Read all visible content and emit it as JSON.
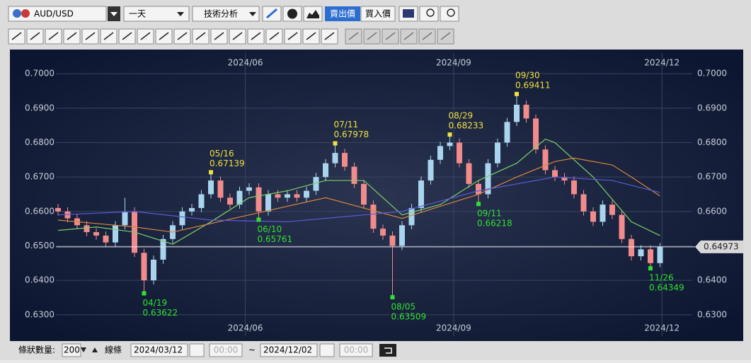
{
  "toolbar": {
    "symbol": "AUD/USD",
    "period": "一天",
    "analysis": "技術分析",
    "sell": "賣出價",
    "buy": "買入價"
  },
  "footer": {
    "bars_label": "條狀數量:",
    "bars": "200",
    "line": "線條",
    "from_date": "2024/03/12",
    "from_time": "00:00",
    "sep": "~",
    "to_date": "2024/12/02",
    "to_time": "00:00"
  },
  "chart_data": {
    "type": "candlestick",
    "up_color": "#a8d4ee",
    "down_color": "#f08c8c",
    "xlim": [
      -0.2,
      63.4
    ],
    "xticks": [
      {
        "value": 19.6,
        "label": "2024/06"
      },
      {
        "value": 41.4,
        "label": "2024/09"
      },
      {
        "value": 63.2,
        "label": "2024/12"
      }
    ],
    "ylim": [
      0.6238,
      0.706
    ],
    "yticks": [
      {
        "value": 0.63,
        "label": "0.6300"
      },
      {
        "value": 0.64,
        "label": "0.6400"
      },
      {
        "value": 0.65,
        "label": "0.6500"
      },
      {
        "value": 0.66,
        "label": "0.6600"
      },
      {
        "value": 0.67,
        "label": "0.6700"
      },
      {
        "value": 0.68,
        "label": "0.6800"
      },
      {
        "value": 0.69,
        "label": "0.6900"
      },
      {
        "value": 0.7,
        "label": "0.7000"
      }
    ],
    "grid": true,
    "candles": {
      "open": [
        0.661,
        0.66,
        0.658,
        0.656,
        0.654,
        0.653,
        0.651,
        0.656,
        0.66,
        0.648,
        0.64,
        0.646,
        0.652,
        0.656,
        0.66,
        0.661,
        0.665,
        0.669,
        0.664,
        0.662,
        0.666,
        0.667,
        0.66,
        0.665,
        0.664,
        0.665,
        0.664,
        0.666,
        0.67,
        0.674,
        0.677,
        0.673,
        0.668,
        0.662,
        0.655,
        0.653,
        0.65,
        0.656,
        0.661,
        0.669,
        0.675,
        0.679,
        0.68,
        0.674,
        0.668,
        0.665,
        0.674,
        0.68,
        0.686,
        0.691,
        0.687,
        0.678,
        0.672,
        0.67,
        0.669,
        0.665,
        0.66,
        0.657,
        0.662,
        0.659,
        0.652,
        0.647,
        0.649,
        0.645
      ],
      "high": [
        0.6622,
        0.6612,
        0.6592,
        0.6572,
        0.6552,
        0.6542,
        0.6572,
        0.664,
        0.6612,
        0.6492,
        0.6472,
        0.6532,
        0.6572,
        0.6612,
        0.6622,
        0.6662,
        0.67139,
        0.6702,
        0.6652,
        0.6672,
        0.6682,
        0.6682,
        0.6662,
        0.6662,
        0.6662,
        0.6662,
        0.6672,
        0.6712,
        0.6752,
        0.67978,
        0.6782,
        0.6742,
        0.6692,
        0.6632,
        0.6562,
        0.6542,
        0.6572,
        0.6622,
        0.6702,
        0.6762,
        0.6802,
        0.68233,
        0.6812,
        0.6752,
        0.6692,
        0.6752,
        0.6812,
        0.6872,
        0.69411,
        0.6922,
        0.6882,
        0.6792,
        0.6732,
        0.6712,
        0.6702,
        0.6662,
        0.6612,
        0.6632,
        0.6632,
        0.6602,
        0.6532,
        0.6502,
        0.6502,
        0.6509
      ],
      "low": [
        0.6588,
        0.6568,
        0.6548,
        0.6528,
        0.6518,
        0.6498,
        0.6498,
        0.6548,
        0.6468,
        0.63622,
        0.6388,
        0.6448,
        0.6508,
        0.6548,
        0.6588,
        0.6598,
        0.6638,
        0.6628,
        0.6608,
        0.6608,
        0.6648,
        0.65761,
        0.6588,
        0.6628,
        0.6628,
        0.6628,
        0.6628,
        0.6648,
        0.6688,
        0.6728,
        0.6718,
        0.6668,
        0.6608,
        0.6538,
        0.6518,
        0.63509,
        0.6488,
        0.6548,
        0.6598,
        0.6678,
        0.6738,
        0.6778,
        0.6728,
        0.6668,
        0.66218,
        0.6638,
        0.6728,
        0.6788,
        0.6848,
        0.6858,
        0.6768,
        0.6708,
        0.6688,
        0.6678,
        0.6638,
        0.6588,
        0.6558,
        0.6558,
        0.6578,
        0.6508,
        0.6458,
        0.6458,
        0.64349,
        0.6438
      ],
      "close": [
        0.66,
        0.658,
        0.656,
        0.654,
        0.653,
        0.651,
        0.656,
        0.66,
        0.648,
        0.64,
        0.646,
        0.652,
        0.656,
        0.66,
        0.661,
        0.665,
        0.669,
        0.664,
        0.662,
        0.666,
        0.667,
        0.66,
        0.665,
        0.664,
        0.665,
        0.664,
        0.666,
        0.67,
        0.674,
        0.677,
        0.673,
        0.668,
        0.662,
        0.655,
        0.653,
        0.65,
        0.656,
        0.661,
        0.669,
        0.675,
        0.679,
        0.68,
        0.674,
        0.668,
        0.665,
        0.674,
        0.68,
        0.686,
        0.691,
        0.687,
        0.678,
        0.672,
        0.67,
        0.669,
        0.665,
        0.66,
        0.657,
        0.662,
        0.659,
        0.652,
        0.647,
        0.649,
        0.645,
        0.6497
      ]
    },
    "lines": [
      {
        "color": "#7ccf6a",
        "x": [
          0,
          4,
          8,
          12,
          16,
          20,
          24,
          28,
          32,
          36,
          40,
          44,
          48,
          51,
          52,
          56,
          60,
          63
        ],
        "values": [
          0.6545,
          0.6555,
          0.654,
          0.6505,
          0.657,
          0.664,
          0.666,
          0.669,
          0.669,
          0.659,
          0.662,
          0.669,
          0.674,
          0.681,
          0.68,
          0.67,
          0.657,
          0.653
        ]
      },
      {
        "color": "#d9853b",
        "x": [
          0,
          8,
          12,
          20,
          28,
          36,
          44,
          48,
          52,
          54,
          58,
          60,
          63
        ],
        "values": [
          0.6575,
          0.6555,
          0.654,
          0.659,
          0.664,
          0.658,
          0.665,
          0.67,
          0.6745,
          0.6755,
          0.6735,
          0.67,
          0.6645
        ]
      },
      {
        "color": "#5a5ad8",
        "x": [
          0,
          8,
          16,
          24,
          32,
          36,
          44,
          52,
          58,
          63
        ],
        "values": [
          0.659,
          0.66,
          0.6575,
          0.657,
          0.659,
          0.66,
          0.666,
          0.67,
          0.669,
          0.6655
        ]
      }
    ],
    "current_price": 0.64973,
    "annotations": [
      {
        "kind": "low",
        "date": "04/19",
        "value": 0.63622
      },
      {
        "kind": "high",
        "date": "05/16",
        "value": 0.67139
      },
      {
        "kind": "low",
        "date": "06/10",
        "value": 0.65761
      },
      {
        "kind": "high",
        "date": "07/11",
        "value": 0.67978
      },
      {
        "kind": "low",
        "date": "08/05",
        "value": 0.63509
      },
      {
        "kind": "high",
        "date": "08/29",
        "value": 0.68233
      },
      {
        "kind": "low",
        "date": "09/11",
        "value": 0.66218
      },
      {
        "kind": "high",
        "date": "09/30",
        "value": 0.69411
      },
      {
        "kind": "low",
        "date": "11/26",
        "value": 0.64349
      }
    ]
  }
}
